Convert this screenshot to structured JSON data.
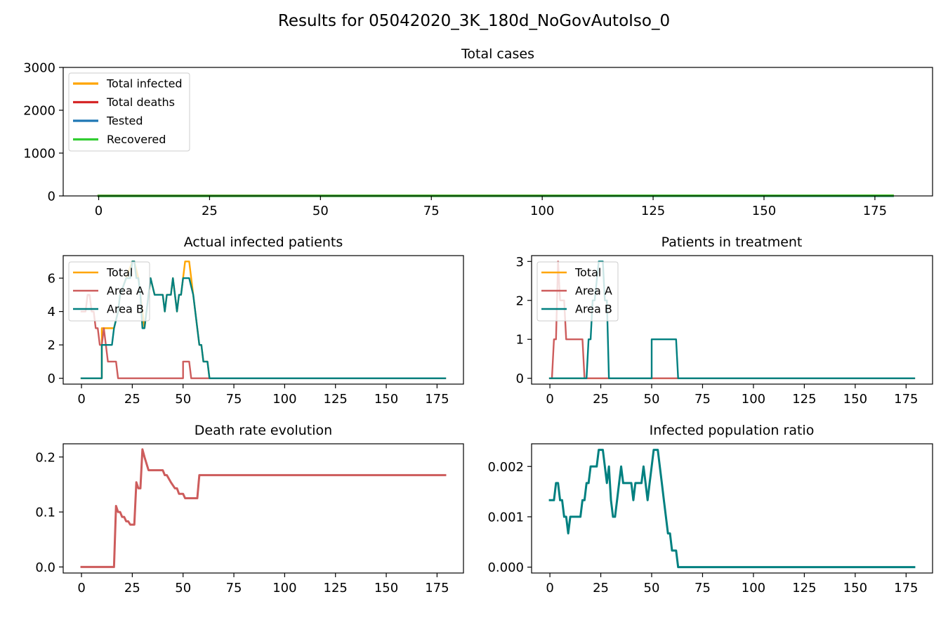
{
  "figure": {
    "title": "Results for 05042020_3K_180d_NoGovAutoIso_0"
  },
  "chart_data": [
    {
      "id": "total-cases",
      "type": "line",
      "title": "Total cases",
      "xlim": [
        -8,
        188
      ],
      "ylim": [
        0,
        3000
      ],
      "xticks": [
        0,
        25,
        50,
        75,
        100,
        125,
        150,
        175
      ],
      "yticks": [
        0,
        1000,
        2000,
        3000
      ],
      "legend": "upper-left",
      "series": [
        {
          "name": "Total infected",
          "color": "#FFA500",
          "x": [
            0,
            179
          ],
          "y": [
            4,
            8
          ]
        },
        {
          "name": "Total deaths",
          "color": "#D62728",
          "x": [
            0,
            179
          ],
          "y": [
            0,
            1
          ]
        },
        {
          "name": "Tested",
          "color": "#1F77B4",
          "x": [
            0,
            179
          ],
          "y": [
            0,
            0
          ]
        },
        {
          "name": "Recovered",
          "color": "#32CD32",
          "x": [
            0,
            179
          ],
          "y": [
            0,
            6
          ]
        }
      ]
    },
    {
      "id": "actual-infected",
      "type": "line",
      "title": "Actual infected patients",
      "xlim": [
        -9,
        188
      ],
      "ylim": [
        -0.35,
        7.35
      ],
      "xticks": [
        0,
        25,
        50,
        75,
        100,
        125,
        150,
        175
      ],
      "yticks": [
        0,
        2,
        4,
        6
      ],
      "legend": "upper-left",
      "series": [
        {
          "name": "Total",
          "color": "#FFA500",
          "x": [
            0,
            10,
            10,
            15,
            16,
            18,
            19,
            25,
            26,
            28,
            30,
            31,
            32,
            34,
            36,
            38,
            40,
            41,
            42,
            44,
            45,
            46,
            47,
            48,
            49,
            50,
            51,
            52,
            53,
            55,
            57,
            58,
            59,
            60,
            61,
            62,
            63,
            179
          ],
          "y": [
            0,
            0,
            3,
            3,
            3,
            4,
            5,
            7,
            7,
            6,
            4,
            3,
            4,
            6,
            5,
            5,
            5,
            4,
            5,
            5,
            6,
            5,
            4,
            5,
            5,
            6,
            7,
            7,
            7,
            5,
            3,
            2,
            2,
            1,
            1,
            1,
            0,
            0
          ]
        },
        {
          "name": "Area A",
          "color": "#CD5C5C",
          "x": [
            0,
            2,
            3,
            4,
            5,
            6,
            7,
            8,
            9,
            10,
            11,
            12,
            13,
            14,
            15,
            16,
            17,
            18,
            50,
            50,
            53,
            54,
            179
          ],
          "y": [
            4,
            4,
            5,
            5,
            4,
            4,
            3,
            3,
            2,
            2,
            3,
            2,
            1,
            1,
            1,
            1,
            1,
            0,
            0,
            1,
            1,
            0,
            0
          ]
        },
        {
          "name": "Area B",
          "color": "#008080",
          "x": [
            0,
            10,
            10,
            15,
            16,
            18,
            19,
            22,
            24,
            25,
            26,
            27,
            28,
            29,
            30,
            31,
            32,
            34,
            36,
            38,
            40,
            41,
            42,
            44,
            45,
            46,
            47,
            48,
            49,
            50,
            51,
            52,
            53,
            55,
            57,
            58,
            59,
            60,
            61,
            62,
            63,
            179
          ],
          "y": [
            0,
            0,
            2,
            2,
            3,
            4,
            5,
            6,
            6,
            7,
            7,
            6,
            6,
            5,
            3,
            3,
            4,
            6,
            5,
            5,
            5,
            4,
            5,
            5,
            6,
            5,
            4,
            5,
            5,
            6,
            6,
            6,
            6,
            5,
            3,
            2,
            2,
            1,
            1,
            1,
            0,
            0
          ]
        }
      ]
    },
    {
      "id": "in-treatment",
      "type": "line",
      "title": "Patients in treatment",
      "xlim": [
        -9,
        188
      ],
      "ylim": [
        -0.15,
        3.15
      ],
      "xticks": [
        0,
        25,
        50,
        75,
        100,
        125,
        150,
        175
      ],
      "yticks": [
        0,
        1,
        2,
        3
      ],
      "legend": "upper-left",
      "series": [
        {
          "name": "Total",
          "color": "#FFA500",
          "x": [
            0,
            179
          ],
          "y": [
            0,
            0
          ]
        },
        {
          "name": "Area A",
          "color": "#CD5C5C",
          "x": [
            0,
            1,
            2,
            3,
            4,
            5,
            6,
            7,
            8,
            9,
            16,
            17,
            18,
            179
          ],
          "y": [
            0,
            0,
            1,
            1,
            3,
            2,
            2,
            2,
            1,
            1,
            1,
            0,
            0,
            0
          ]
        },
        {
          "name": "Area B",
          "color": "#008080",
          "x": [
            0,
            18,
            19,
            20,
            21,
            22,
            24,
            25,
            26,
            27,
            28,
            29,
            30,
            50,
            50,
            62,
            63,
            179
          ],
          "y": [
            0,
            0,
            1,
            1,
            2,
            2,
            3,
            3,
            3,
            2,
            2,
            0,
            0,
            0,
            1,
            1,
            0,
            0
          ]
        }
      ]
    },
    {
      "id": "death-rate",
      "type": "line",
      "title": "Death rate evolution",
      "xlim": [
        -9,
        188
      ],
      "ylim": [
        -0.011,
        0.224
      ],
      "xticks": [
        0,
        25,
        50,
        75,
        100,
        125,
        150,
        175
      ],
      "yticks": [
        0.0,
        0.1,
        0.2
      ],
      "ytick_labels": [
        "0.0",
        "0.1",
        "0.2"
      ],
      "legend": "none",
      "series": [
        {
          "color": "#CD5C5C",
          "x": [
            0,
            16,
            17,
            18,
            19,
            20,
            21,
            22,
            23,
            24,
            25,
            26,
            27,
            28,
            29,
            30,
            31,
            33,
            35,
            40,
            41,
            42,
            44,
            46,
            47,
            48,
            50,
            51,
            52,
            57,
            58,
            179
          ],
          "y": [
            0,
            0,
            0.111,
            0.1,
            0.1,
            0.091,
            0.091,
            0.083,
            0.083,
            0.077,
            0.077,
            0.077,
            0.154,
            0.143,
            0.143,
            0.214,
            0.2,
            0.176,
            0.176,
            0.176,
            0.167,
            0.167,
            0.154,
            0.143,
            0.143,
            0.133,
            0.133,
            0.125,
            0.125,
            0.125,
            0.167,
            0.167
          ]
        }
      ]
    },
    {
      "id": "infected-ratio",
      "type": "line",
      "title": "Infected population ratio",
      "xlim": [
        -9,
        188
      ],
      "ylim": [
        -0.000117,
        0.00245
      ],
      "xticks": [
        0,
        25,
        50,
        75,
        100,
        125,
        150,
        175
      ],
      "yticks": [
        0.0,
        0.001,
        0.002
      ],
      "ytick_labels": [
        "0.000",
        "0.001",
        "0.002"
      ],
      "legend": "none",
      "series": [
        {
          "color": "#008080",
          "x": [
            0,
            2,
            3,
            4,
            5,
            6,
            7,
            8,
            9,
            10,
            11,
            12,
            13,
            14,
            15,
            16,
            17,
            18,
            19,
            20,
            21,
            22,
            23,
            24,
            25,
            26,
            27,
            28,
            29,
            30,
            31,
            32,
            33,
            34,
            35,
            36,
            37,
            38,
            39,
            40,
            41,
            42,
            43,
            44,
            45,
            46,
            47,
            48,
            49,
            50,
            51,
            52,
            53,
            54,
            55,
            56,
            57,
            58,
            59,
            60,
            61,
            62,
            63,
            179
          ],
          "y": [
            0.00133,
            0.00133,
            0.00167,
            0.00167,
            0.00133,
            0.00133,
            0.001,
            0.001,
            0.00067,
            0.001,
            0.001,
            0.001,
            0.001,
            0.001,
            0.001,
            0.00133,
            0.00133,
            0.00167,
            0.00167,
            0.002,
            0.002,
            0.002,
            0.002,
            0.00233,
            0.00233,
            0.00233,
            0.002,
            0.00167,
            0.002,
            0.00133,
            0.001,
            0.001,
            0.00133,
            0.00167,
            0.002,
            0.00167,
            0.00167,
            0.00167,
            0.00167,
            0.00167,
            0.00133,
            0.00167,
            0.00167,
            0.00167,
            0.00167,
            0.002,
            0.00167,
            0.00133,
            0.00167,
            0.002,
            0.00233,
            0.00233,
            0.00233,
            0.002,
            0.00167,
            0.00133,
            0.001,
            0.00067,
            0.00067,
            0.00033,
            0.00033,
            0.00033,
            0,
            0
          ]
        }
      ]
    }
  ]
}
